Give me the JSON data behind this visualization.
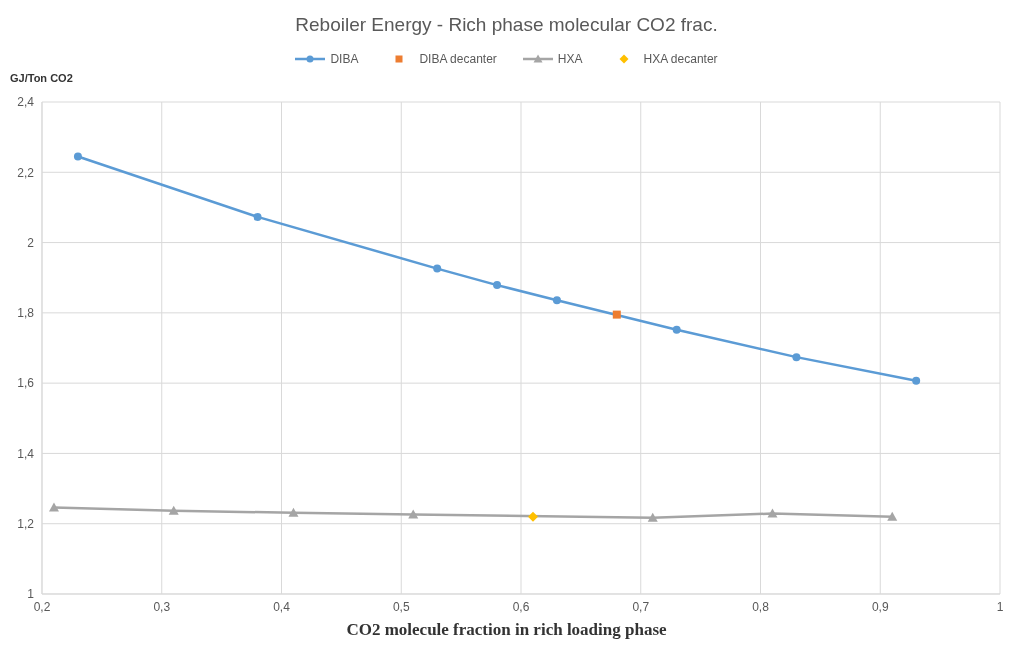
{
  "chart_data": {
    "type": "line",
    "title": "Reboiler Energy - Rich phase molecular CO2 frac.",
    "xlabel": "CO2 molecule fraction in rich loading phase",
    "ylabel": "GJ/Ton CO2",
    "xlim": [
      0.2,
      1
    ],
    "xticks": [
      {
        "value": 0.2,
        "label": "0,2"
      },
      {
        "value": 0.3,
        "label": "0,3"
      },
      {
        "value": 0.4,
        "label": "0,4"
      },
      {
        "value": 0.5,
        "label": "0,5"
      },
      {
        "value": 0.6,
        "label": "0,6"
      },
      {
        "value": 0.7,
        "label": "0,7"
      },
      {
        "value": 0.8,
        "label": "0,8"
      },
      {
        "value": 0.9,
        "label": "0,9"
      },
      1
    ],
    "ylim": [
      1,
      2.4
    ],
    "yticks": [
      1,
      {
        "value": 1.2,
        "label": "1,2"
      },
      {
        "value": 1.4,
        "label": "1,4"
      },
      {
        "value": 1.6,
        "label": "1,6"
      },
      {
        "value": 1.8,
        "label": "1,8"
      },
      2,
      {
        "value": 2.2,
        "label": "2,2"
      },
      {
        "value": 2.4,
        "label": "2,4"
      }
    ],
    "grid": true,
    "legend": "top",
    "line_style": "solid",
    "series": [
      {
        "name": "DIBA",
        "marker": "circle",
        "color": "#5b9bd5",
        "x": [
          0.23,
          0.38,
          0.53,
          0.58,
          0.63,
          0.73,
          0.83,
          0.93
        ],
        "values": [
          2.245,
          2.073,
          1.926,
          1.879,
          1.836,
          1.752,
          1.674,
          1.607
        ]
      },
      {
        "name": "DIBA decanter",
        "type": "scatter",
        "marker": "square",
        "color": "#ed7d31",
        "x": [
          0.68
        ],
        "values": [
          1.795
        ]
      },
      {
        "name": "HXA",
        "marker": "triangle",
        "color": "#a5a5a5",
        "x": [
          0.21,
          0.31,
          0.41,
          0.51,
          0.71,
          0.81,
          0.91
        ],
        "values": [
          1.246,
          1.237,
          1.231,
          1.226,
          1.217,
          1.229,
          1.22
        ]
      },
      {
        "name": "HXA decanter",
        "type": "scatter",
        "marker": "diamond",
        "color": "#ffc000",
        "x": [
          0.61
        ],
        "values": [
          1.22
        ]
      }
    ]
  }
}
